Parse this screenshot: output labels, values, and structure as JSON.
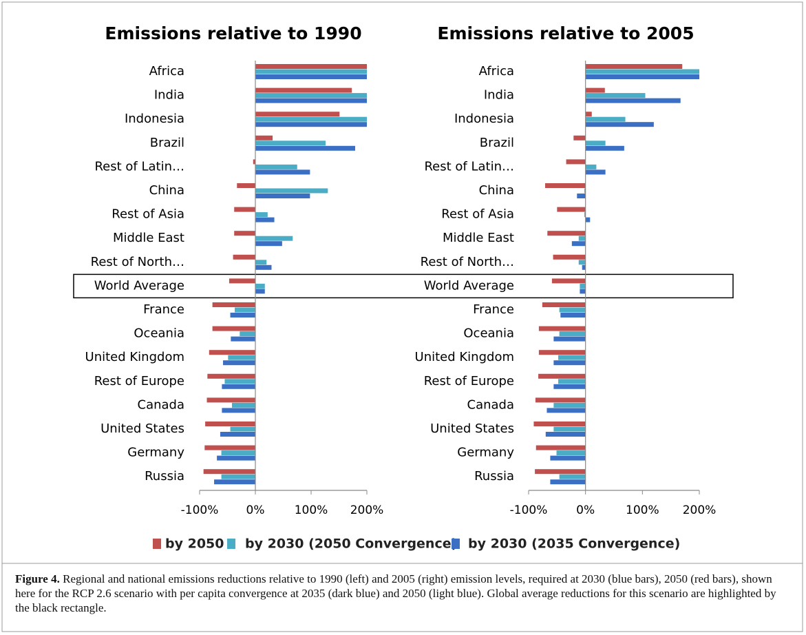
{
  "chart_data": [
    {
      "type": "barh",
      "title": "Emissions relative to 1990",
      "categories": [
        "Africa",
        "India",
        "Indonesia",
        "Brazil",
        "Rest of Latin…",
        "China",
        "Rest of Asia",
        "Middle East",
        "Rest of North…",
        "World Average",
        "France",
        "Oceania",
        "United Kingdom",
        "Rest of Europe",
        "Canada",
        "United States",
        "Germany",
        "Russia"
      ],
      "series": [
        {
          "values": [
            200,
            173,
            151,
            31,
            -4,
            -33,
            -38,
            -38,
            -40,
            -47,
            -77,
            -77,
            -83,
            -86,
            -87,
            -90,
            -91,
            -93
          ]
        },
        {
          "values": [
            200,
            200,
            200,
            126,
            75,
            130,
            22,
            67,
            20,
            17,
            -37,
            -28,
            -49,
            -55,
            -42,
            -45,
            -61,
            -61
          ]
        },
        {
          "values": [
            200,
            200,
            200,
            179,
            98,
            98,
            34,
            48,
            29,
            17,
            -45,
            -44,
            -58,
            -60,
            -60,
            -63,
            -69,
            -74
          ]
        }
      ],
      "xlim": [
        -100,
        200
      ],
      "xticks": [
        {
          "value": -100,
          "label": "-100%"
        },
        {
          "value": 0,
          "label": "0%"
        },
        {
          "value": 100,
          "label": "100%"
        },
        {
          "value": 200,
          "label": "200%"
        }
      ]
    },
    {
      "type": "barh",
      "title": "Emissions relative to 2005",
      "categories": [
        "Africa",
        "India",
        "Indonesia",
        "Brazil",
        "Rest of Latin…",
        "China",
        "Rest of Asia",
        "Middle East",
        "Rest of North…",
        "World Average",
        "France",
        "Oceania",
        "United Kingdom",
        "Rest of Europe",
        "Canada",
        "United States",
        "Germany",
        "Russia"
      ],
      "series": [
        {
          "values": [
            170,
            34,
            11,
            -21,
            -34,
            -71,
            -50,
            -67,
            -57,
            -59,
            -76,
            -82,
            -82,
            -83,
            -88,
            -91,
            -87,
            -89
          ]
        },
        {
          "values": [
            200,
            105,
            70,
            35,
            19,
            -2,
            -2,
            -12,
            -12,
            -10,
            -46,
            -46,
            -48,
            -48,
            -56,
            -56,
            -51,
            -46
          ]
        },
        {
          "values": [
            200,
            167,
            120,
            68,
            35,
            -15,
            8,
            -24,
            -6,
            -10,
            -44,
            -56,
            -56,
            -56,
            -68,
            -70,
            -62,
            -62
          ]
        }
      ],
      "xlim": [
        -100,
        200
      ],
      "xticks": [
        {
          "value": -100,
          "label": "-100%"
        },
        {
          "value": 0,
          "label": "0%"
        },
        {
          "value": 100,
          "label": "100%"
        },
        {
          "value": 200,
          "label": "200%"
        }
      ]
    }
  ],
  "legend": [
    {
      "name": "by 2050",
      "color": "#c0504d"
    },
    {
      "name": "by 2030 (2050 Convergence)",
      "color": "#4bacc6"
    },
    {
      "name": "by 2030 (2035 Convergence)",
      "color": "#3a6fc4"
    }
  ],
  "caption": {
    "label": "Figure 4.",
    "text": "Regional and national emissions reductions relative to 1990 (left) and 2005 (right) emission levels, required at 2030 (blue bars), 2050 (red bars), shown here for the RCP 2.6 scenario with per capita convergence at 2035 (dark blue) and 2050 (light blue). Global average reductions for this scenario are highlighted by the black rectangle."
  }
}
